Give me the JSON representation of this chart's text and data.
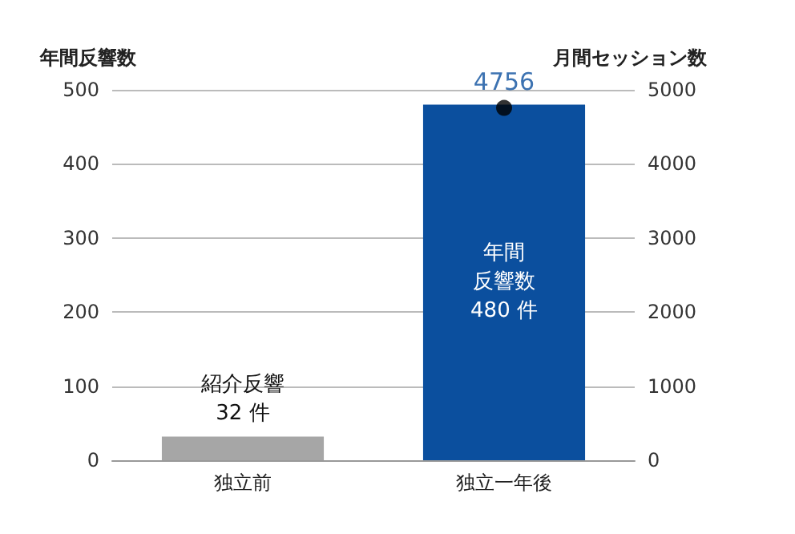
{
  "chart_data": {
    "type": "bar",
    "ylabel": "年間反響数",
    "y2label": "月間セッション数",
    "categories": [
      "独立前",
      "独立一年後"
    ],
    "series": [
      {
        "colors": [
          "#a6a6a6",
          "#0b4f9e"
        ],
        "values": [
          32,
          480
        ],
        "value_labels": [
          [
            "紹介反響",
            "32 件"
          ],
          [
            "年間",
            "反響数",
            "480 件"
          ]
        ]
      },
      {
        "type": "scatter",
        "axis": "y2",
        "color": "#000000",
        "values": [
          null,
          4756
        ],
        "value_labels": [
          null,
          "4756"
        ]
      }
    ],
    "ylim": [
      0,
      500
    ],
    "yticks": [
      0,
      100,
      200,
      300,
      400,
      500
    ],
    "y2lim": [
      0,
      5000
    ],
    "y2ticks": [
      0,
      1000,
      2000,
      3000,
      4000,
      5000
    ],
    "grid": "y",
    "marker": "circle"
  }
}
